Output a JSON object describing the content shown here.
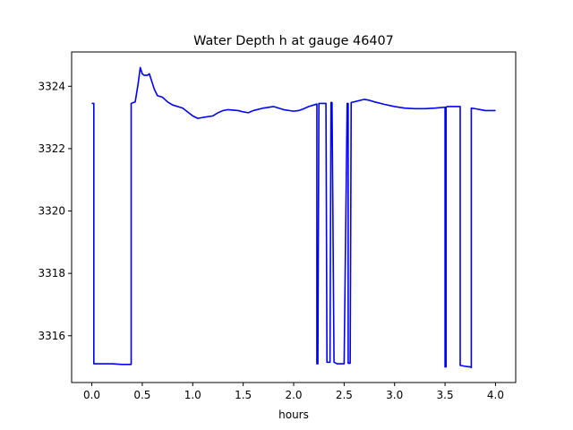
{
  "chart_data": {
    "type": "line",
    "title": "Water Depth h at gauge 46407",
    "xlabel": "hours",
    "ylabel": "",
    "xlim": [
      -0.2,
      4.2
    ],
    "ylim": [
      3314.5,
      3325.1
    ],
    "x_ticks": [
      0.0,
      0.5,
      1.0,
      1.5,
      2.0,
      2.5,
      3.0,
      3.5,
      4.0
    ],
    "x_tick_labels": [
      "0.0",
      "0.5",
      "1.0",
      "1.5",
      "2.0",
      "2.5",
      "3.0",
      "3.5",
      "4.0"
    ],
    "y_ticks": [
      3316,
      3318,
      3320,
      3322,
      3324
    ],
    "y_tick_labels": [
      "3316",
      "3318",
      "3320",
      "3322",
      "3324"
    ],
    "grid": false,
    "line_color": "#0000ff",
    "series": [
      {
        "x": [
          0.0,
          0.02,
          0.02,
          0.1,
          0.2,
          0.3,
          0.39,
          0.39,
          0.43,
          0.46,
          0.48,
          0.5,
          0.52,
          0.55,
          0.57,
          0.6,
          0.62,
          0.65,
          0.7,
          0.75,
          0.8,
          0.9,
          1.0,
          1.05,
          1.1,
          1.2,
          1.25,
          1.3,
          1.35,
          1.45,
          1.5,
          1.55,
          1.6,
          1.7,
          1.8,
          1.85,
          1.9,
          2.0,
          2.05,
          2.1,
          2.15,
          2.2,
          2.23,
          2.23,
          2.24,
          2.25,
          2.3,
          2.32,
          2.33,
          2.34,
          2.36,
          2.37,
          2.38,
          2.38,
          2.4,
          2.42,
          2.43,
          2.5,
          2.53,
          2.54,
          2.54,
          2.56,
          2.57,
          2.57,
          2.6,
          2.7,
          2.75,
          2.8,
          2.9,
          3.0,
          3.1,
          3.2,
          3.3,
          3.4,
          3.5,
          3.5,
          3.51,
          3.51,
          3.52,
          3.6,
          3.65,
          3.65,
          3.7,
          3.75,
          3.76,
          3.76,
          3.8,
          3.9,
          4.0
        ],
        "y": [
          3323.45,
          3323.45,
          3315.1,
          3315.1,
          3315.1,
          3315.08,
          3315.08,
          3323.45,
          3323.5,
          3324.1,
          3324.6,
          3324.4,
          3324.35,
          3324.35,
          3324.4,
          3324.1,
          3323.9,
          3323.7,
          3323.65,
          3323.5,
          3323.4,
          3323.3,
          3323.05,
          3322.97,
          3323.0,
          3323.05,
          3323.15,
          3323.22,
          3323.25,
          3323.22,
          3323.18,
          3323.15,
          3323.22,
          3323.3,
          3323.35,
          3323.3,
          3323.25,
          3323.2,
          3323.22,
          3323.28,
          3323.35,
          3323.4,
          3323.43,
          3315.1,
          3315.1,
          3323.45,
          3323.45,
          3323.45,
          3315.15,
          3315.15,
          3315.15,
          3323.48,
          3323.48,
          3323.48,
          3315.15,
          3315.12,
          3315.1,
          3315.1,
          3323.45,
          3323.45,
          3315.12,
          3315.12,
          3323.45,
          3323.48,
          3323.5,
          3323.58,
          3323.55,
          3323.5,
          3323.42,
          3323.35,
          3323.3,
          3323.28,
          3323.28,
          3323.3,
          3323.33,
          3315.0,
          3315.0,
          3323.33,
          3323.35,
          3323.35,
          3323.35,
          3315.05,
          3315.02,
          3315.0,
          3314.98,
          3323.3,
          3323.28,
          3323.22,
          3323.22
        ]
      }
    ]
  }
}
